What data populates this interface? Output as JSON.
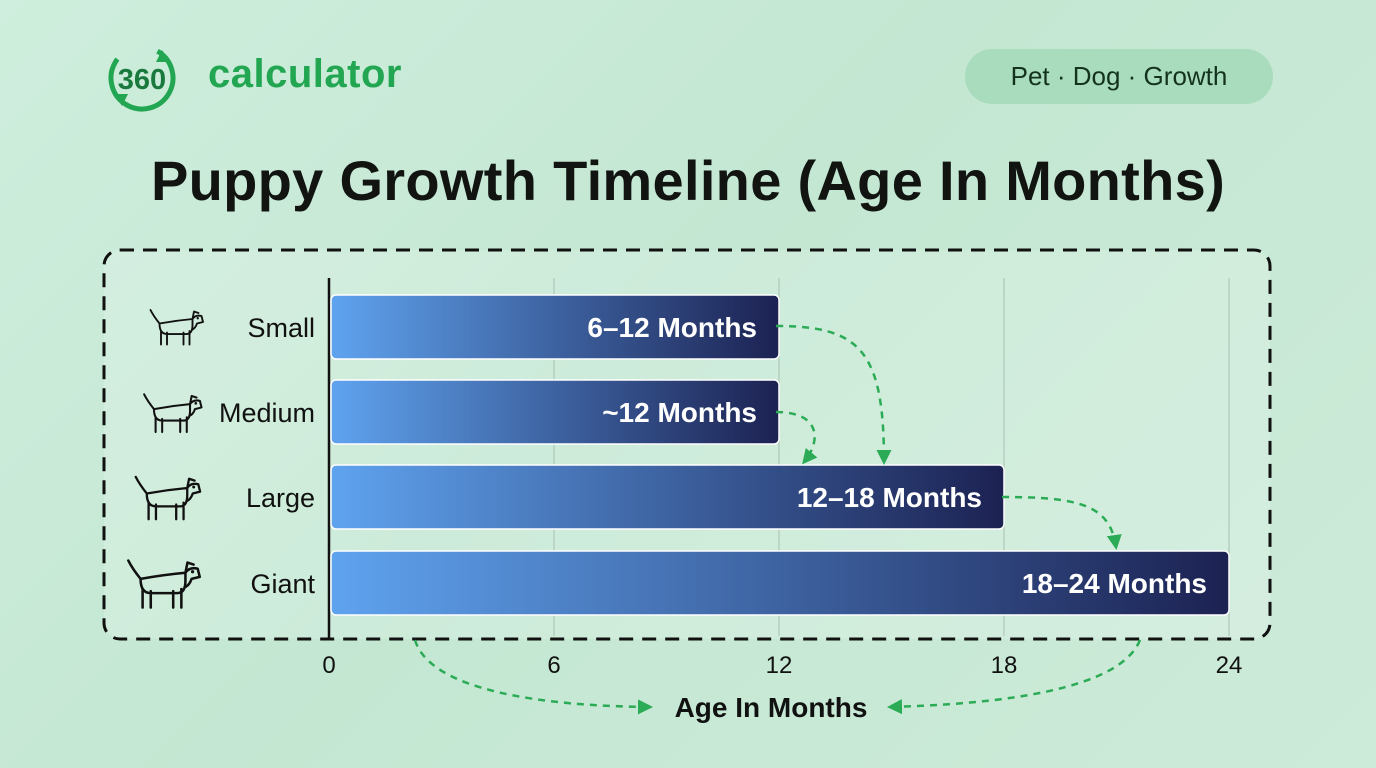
{
  "brand": {
    "logo_digits": "360",
    "name": "calculator",
    "accent": "#22a652"
  },
  "tag": "Pet · Dog · Growth",
  "chart_data": {
    "type": "bar",
    "orientation": "horizontal",
    "title": "Puppy Growth Timeline (Age In Months)",
    "xlabel": "Age In Months",
    "ylabel": "",
    "xlim": [
      0,
      24
    ],
    "x_ticks": [
      "0",
      "6",
      "12",
      "18",
      "24"
    ],
    "x_tick_values": [
      0,
      6,
      12,
      18,
      24
    ],
    "grid": "vertical",
    "categories": [
      "Small",
      "Medium",
      "Large",
      "Giant"
    ],
    "icons": [
      "small-dog-icon",
      "medium-dog-icon",
      "large-dog-icon",
      "giant-dog-icon"
    ],
    "values": [
      12,
      12,
      18,
      24
    ],
    "data_labels": [
      "6–12 Months",
      "~12 Months",
      "12–18 Months",
      "18–24 Months"
    ],
    "colors": {
      "bar_start": "#5fa3ef",
      "bar_end": "#1c2252",
      "arrow": "#2bab55"
    }
  }
}
